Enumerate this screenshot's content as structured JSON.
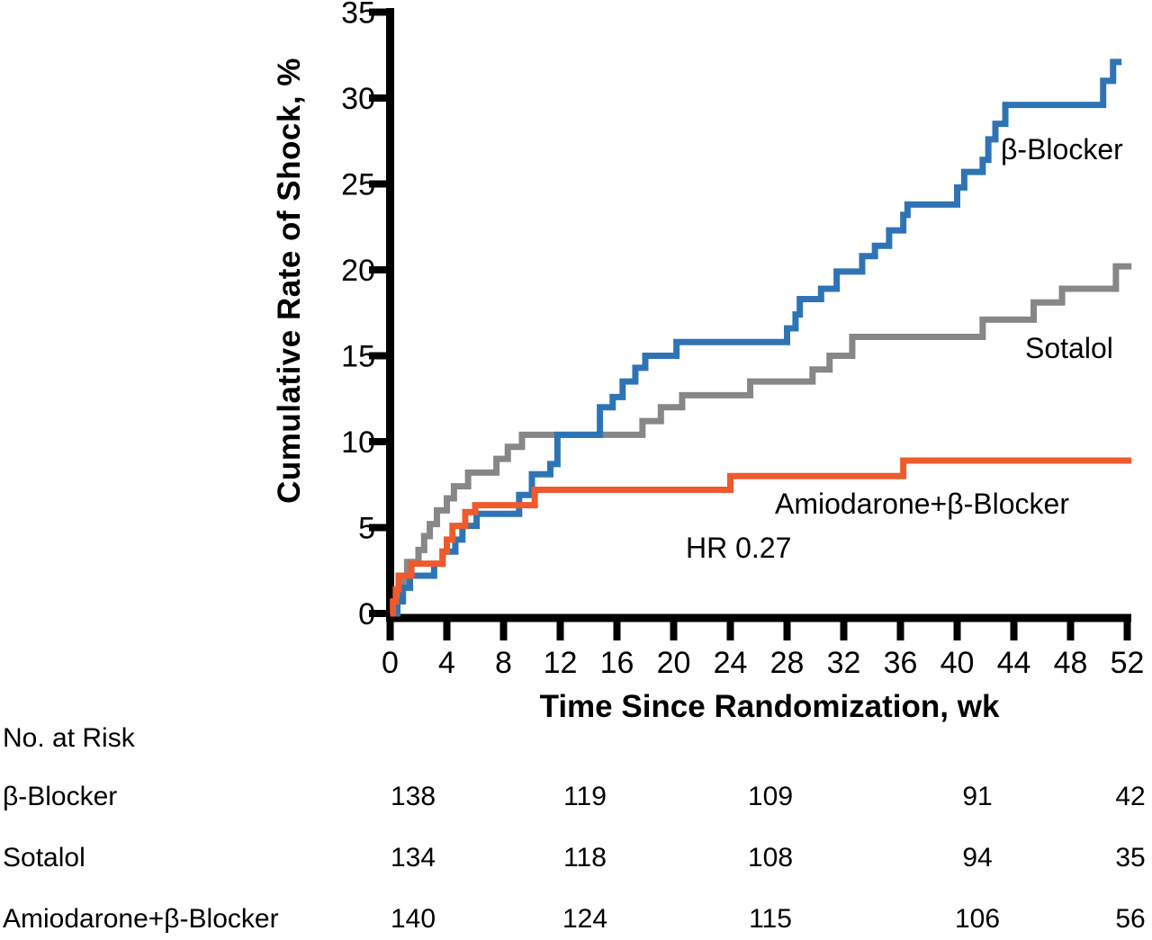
{
  "figure": {
    "background": "#ffffff",
    "axis_color": "#000000",
    "text_color": "#000000"
  },
  "chart_data": {
    "type": "line",
    "subtype": "kaplan-meier-step",
    "title": "",
    "xlabel": "Time Since Randomization, wk",
    "ylabel": "Cumulative Rate of Shock, %",
    "xlim": [
      0,
      52
    ],
    "ylim": [
      0,
      35
    ],
    "xticks": [
      0,
      4,
      8,
      12,
      16,
      20,
      24,
      28,
      32,
      36,
      40,
      44,
      48,
      52
    ],
    "yticks": [
      0,
      5,
      10,
      15,
      20,
      25,
      30,
      35
    ],
    "grid": false,
    "legend_position": "inline-labels",
    "annotation": "HR 0.27",
    "series": [
      {
        "name": "Sotalol",
        "color": "#878787",
        "end_week": 52.3,
        "steps": [
          [
            0,
            0
          ],
          [
            0.5,
            0.8
          ],
          [
            0.8,
            1.5
          ],
          [
            1.0,
            2.2
          ],
          [
            1.2,
            3.0
          ],
          [
            2.0,
            3.7
          ],
          [
            2.4,
            4.5
          ],
          [
            2.8,
            5.2
          ],
          [
            3.3,
            6.0
          ],
          [
            4.0,
            6.7
          ],
          [
            4.5,
            7.4
          ],
          [
            5.5,
            8.2
          ],
          [
            7.5,
            9.0
          ],
          [
            8.3,
            9.7
          ],
          [
            9.3,
            10.4
          ],
          [
            17.8,
            11.2
          ],
          [
            19.1,
            12.0
          ],
          [
            20.6,
            12.7
          ],
          [
            25.4,
            13.5
          ],
          [
            29.8,
            14.2
          ],
          [
            31.0,
            15.0
          ],
          [
            32.6,
            16.1
          ],
          [
            41.8,
            17.1
          ],
          [
            45.4,
            18.1
          ],
          [
            47.4,
            18.9
          ],
          [
            51.2,
            20.2
          ]
        ]
      },
      {
        "name": "β-Blocker",
        "color": "#2e74b5",
        "end_week": 51.6,
        "steps": [
          [
            0,
            0
          ],
          [
            0.5,
            0.7
          ],
          [
            0.9,
            1.5
          ],
          [
            1.4,
            2.2
          ],
          [
            3.1,
            2.9
          ],
          [
            3.7,
            3.6
          ],
          [
            4.6,
            4.3
          ],
          [
            5.1,
            5.1
          ],
          [
            6.1,
            5.8
          ],
          [
            9.1,
            6.9
          ],
          [
            10.0,
            8.1
          ],
          [
            11.3,
            8.7
          ],
          [
            11.8,
            10.4
          ],
          [
            14.8,
            12.0
          ],
          [
            15.7,
            12.6
          ],
          [
            16.4,
            13.5
          ],
          [
            17.3,
            14.3
          ],
          [
            18.0,
            15.0
          ],
          [
            20.2,
            15.8
          ],
          [
            28.0,
            16.6
          ],
          [
            28.6,
            17.4
          ],
          [
            28.9,
            18.3
          ],
          [
            30.4,
            18.9
          ],
          [
            31.5,
            19.9
          ],
          [
            33.3,
            20.8
          ],
          [
            34.2,
            21.4
          ],
          [
            35.2,
            22.3
          ],
          [
            36.2,
            23.2
          ],
          [
            36.5,
            23.8
          ],
          [
            40.0,
            24.8
          ],
          [
            40.5,
            25.7
          ],
          [
            41.8,
            26.4
          ],
          [
            42.2,
            27.6
          ],
          [
            42.7,
            28.5
          ],
          [
            43.4,
            29.6
          ],
          [
            50.3,
            31.0
          ],
          [
            51.0,
            32.1
          ]
        ]
      },
      {
        "name": "Amiodarone+β-Blocker",
        "color": "#ee5a2b",
        "end_week": 52.3,
        "steps": [
          [
            0,
            0
          ],
          [
            0.2,
            0.7
          ],
          [
            0.4,
            1.4
          ],
          [
            0.6,
            2.2
          ],
          [
            1.5,
            2.9
          ],
          [
            3.7,
            3.6
          ],
          [
            4.0,
            4.3
          ],
          [
            4.4,
            5.1
          ],
          [
            5.3,
            5.9
          ],
          [
            6.0,
            6.3
          ],
          [
            10.2,
            7.2
          ],
          [
            24.0,
            8.0
          ],
          [
            36.2,
            8.9
          ]
        ]
      }
    ]
  },
  "risk_table": {
    "title": "No. at Risk",
    "rows": [
      {
        "label": "β-Blocker",
        "values": [
          "138",
          "119",
          "109",
          "91",
          "42"
        ]
      },
      {
        "label": "Sotalol",
        "values": [
          "134",
          "118",
          "108",
          "94",
          "35"
        ]
      },
      {
        "label": "Amiodarone+β-Blocker",
        "values": [
          "140",
          "124",
          "115",
          "106",
          "56"
        ]
      }
    ]
  }
}
